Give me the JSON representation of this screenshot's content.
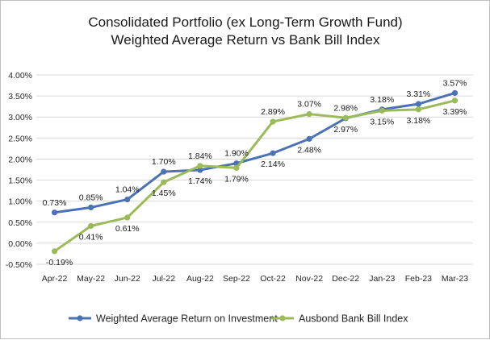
{
  "chart_data": {
    "type": "line",
    "title": "Consolidated Portfolio (ex Long-Term Growth Fund)",
    "subtitle": "Weighted Average Return vs Bank Bill Index",
    "categories": [
      "Apr-22",
      "May-22",
      "Jun-22",
      "Jul-22",
      "Aug-22",
      "Sep-22",
      "Oct-22",
      "Nov-22",
      "Dec-22",
      "Jan-23",
      "Feb-23",
      "Mar-23"
    ],
    "y_ticks": [
      "4.00%",
      "3.50%",
      "3.00%",
      "2.50%",
      "2.00%",
      "1.50%",
      "1.00%",
      "0.50%",
      "0.00%",
      "-0.50%"
    ],
    "ylim": [
      -0.5,
      4.0
    ],
    "grid": true,
    "legend_position": "bottom",
    "series": [
      {
        "name": "Weighted Average Return on Investment",
        "color": "#4a72b5",
        "values": [
          0.73,
          0.85,
          1.04,
          1.7,
          1.74,
          1.9,
          2.14,
          2.48,
          2.97,
          3.18,
          3.31,
          3.57
        ],
        "labels": [
          "0.73%",
          "0.85%",
          "1.04%",
          "1.70%",
          "1.74%",
          "1.90%",
          "2.14%",
          "2.48%",
          "2.97%",
          "3.18%",
          "3.31%",
          "3.57%"
        ],
        "label_pos": [
          "above",
          "above",
          "above",
          "above",
          "below",
          "above",
          "below",
          "below",
          "below",
          "above",
          "above",
          "above"
        ]
      },
      {
        "name": "Ausbond Bank Bill Index",
        "color": "#9bbb59",
        "values": [
          -0.19,
          0.41,
          0.61,
          1.45,
          1.84,
          1.79,
          2.89,
          3.07,
          2.98,
          3.15,
          3.18,
          3.39
        ],
        "labels": [
          "-0.19%",
          "0.41%",
          "0.61%",
          "1.45%",
          "1.84%",
          "1.79%",
          "2.89%",
          "3.07%",
          "2.98%",
          "3.15%",
          "3.18%",
          "3.39%"
        ],
        "label_pos": [
          "below",
          "below",
          "below",
          "below",
          "above",
          "below",
          "above",
          "above",
          "above",
          "below",
          "below",
          "below"
        ]
      }
    ]
  }
}
